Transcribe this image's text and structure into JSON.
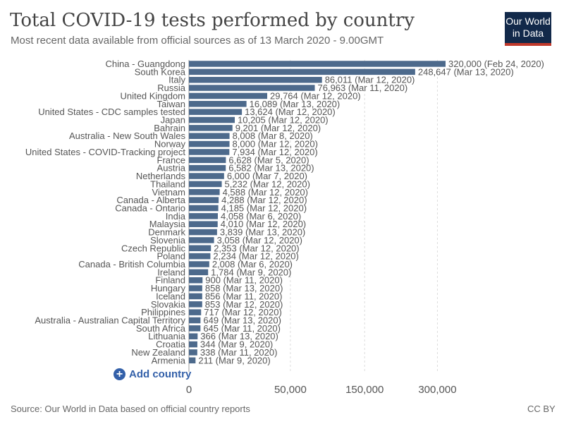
{
  "header": {
    "title": "Total COVID-19 tests performed by country",
    "subtitle": "Most recent data available from official sources as of 13 March 2020 - 9.00GMT",
    "logo_line1": "Our World",
    "logo_line2": "in Data"
  },
  "controls": {
    "add_country_label": "Add country",
    "add_icon": "plus-circle-icon"
  },
  "footer": {
    "source": "Source: Our World in Data based on official country reports",
    "license": "CC BY"
  },
  "colors": {
    "bar": "#4d6a8c",
    "accent": "#3360a9",
    "logo_bg": "#12294a",
    "logo_underline": "#c0392b"
  },
  "chart_data": {
    "type": "bar",
    "orientation": "horizontal",
    "title": "Total COVID-19 tests performed by country",
    "subtitle": "Most recent data available from official sources as of 13 March 2020 - 9.00GMT",
    "xscale": "sqrt",
    "xticks": [
      0,
      50000,
      150000,
      300000
    ],
    "xtick_labels": [
      "0",
      "50,000",
      "150,000",
      "300,000"
    ],
    "grid": true,
    "categories": [
      "China - Guangdong",
      "South Korea",
      "Italy",
      "Russia",
      "United Kingdom",
      "Taiwan",
      "United States - CDC samples tested",
      "Japan",
      "Bahrain",
      "Australia - New South Wales",
      "Norway",
      "United States - COVID-Tracking project",
      "France",
      "Austria",
      "Netherlands",
      "Thailand",
      "Vietnam",
      "Canada - Alberta",
      "Canada - Ontario",
      "India",
      "Malaysia",
      "Denmark",
      "Slovenia",
      "Czech Republic",
      "Poland",
      "Canada - British Columbia",
      "Ireland",
      "Finland",
      "Hungary",
      "Iceland",
      "Slovakia",
      "Philippines",
      "Australia - Australian Capital Territory",
      "South Africa",
      "Lithuania",
      "Croatia",
      "New Zealand",
      "Armenia"
    ],
    "values": [
      320000,
      248647,
      86011,
      76963,
      29764,
      16089,
      13624,
      10205,
      9201,
      8008,
      8000,
      7934,
      6628,
      6582,
      6000,
      5232,
      4588,
      4288,
      4185,
      4058,
      4010,
      3839,
      3058,
      2353,
      2234,
      2008,
      1784,
      900,
      858,
      856,
      853,
      717,
      649,
      645,
      366,
      344,
      338,
      211
    ],
    "value_labels": [
      "320,000 (Feb 24, 2020)",
      "248,647 (Mar 13, 2020)",
      "86,011 (Mar 12, 2020)",
      "76,963 (Mar 11, 2020)",
      "29,764 (Mar 12, 2020)",
      "16,089 (Mar 13, 2020)",
      "13,624 (Mar 12, 2020)",
      "10,205 (Mar 12, 2020)",
      "9,201 (Mar 12, 2020)",
      "8,008 (Mar 8, 2020)",
      "8,000 (Mar 12, 2020)",
      "7,934 (Mar 12, 2020)",
      "6,628 (Mar 5, 2020)",
      "6,582 (Mar 13, 2020)",
      "6,000 (Mar 7, 2020)",
      "5,232 (Mar 12, 2020)",
      "4,588 (Mar 12, 2020)",
      "4,288 (Mar 12, 2020)",
      "4,185 (Mar 12, 2020)",
      "4,058 (Mar 6, 2020)",
      "4,010 (Mar 12, 2020)",
      "3,839 (Mar 13, 2020)",
      "3,058 (Mar 12, 2020)",
      "2,353 (Mar 12, 2020)",
      "2,234 (Mar 12, 2020)",
      "2,008 (Mar 6, 2020)",
      "1,784 (Mar 9, 2020)",
      "900 (Mar 11, 2020)",
      "858 (Mar 13, 2020)",
      "856 (Mar 11, 2020)",
      "853 (Mar 12, 2020)",
      "717 (Mar 12, 2020)",
      "649 (Mar 13, 2020)",
      "645 (Mar 11, 2020)",
      "366 (Mar 13, 2020)",
      "344 (Mar 9, 2020)",
      "338 (Mar 11, 2020)",
      "211 (Mar 9, 2020)"
    ]
  }
}
